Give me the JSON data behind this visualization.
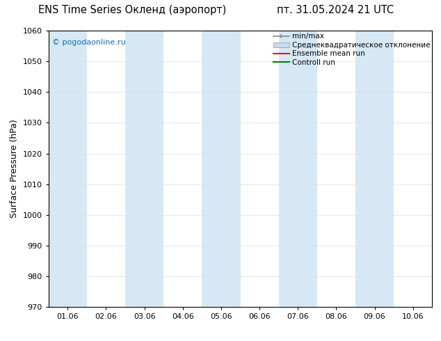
{
  "title_left": "ENS Time Series Окленд (аэропорт)",
  "title_right": "пт. 31.05.2024 21 UTC",
  "ylabel": "Surface Pressure (hPa)",
  "ylim": [
    970,
    1060
  ],
  "yticks": [
    970,
    980,
    990,
    1000,
    1010,
    1020,
    1030,
    1040,
    1050,
    1060
  ],
  "xtick_labels": [
    "01.06",
    "02.06",
    "03.06",
    "04.06",
    "05.06",
    "06.06",
    "07.06",
    "08.06",
    "09.06",
    "10.06"
  ],
  "num_xticks": 10,
  "band_color": "#d6e8f5",
  "background_color": "#ffffff",
  "watermark": "© pogodaonline.ru",
  "watermark_color": "#1a6aad",
  "legend_items": [
    {
      "label": "min/max",
      "color": "#888888",
      "type": "hbar"
    },
    {
      "label": "Среднеквадратическое отклонение",
      "face_color": "#c5ddf0",
      "edge_color": "#aaaaaa",
      "type": "box"
    },
    {
      "label": "Ensemble mean run",
      "color": "#ff0000",
      "type": "line"
    },
    {
      "label": "Controll run",
      "color": "#008000",
      "type": "line"
    }
  ],
  "title_fontsize": 10.5,
  "ylabel_fontsize": 9,
  "tick_fontsize": 8,
  "legend_fontsize": 7.5,
  "watermark_fontsize": 8
}
